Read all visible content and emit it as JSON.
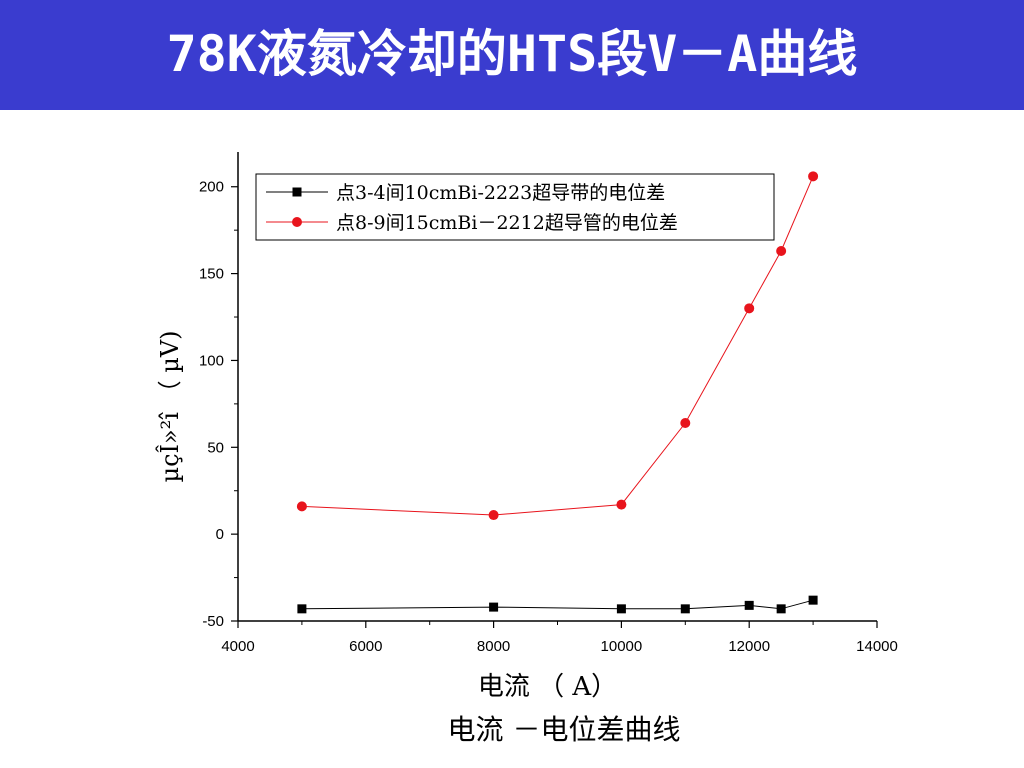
{
  "header": {
    "title": "78K液氮冷却的HTS段V－A曲线"
  },
  "caption": "电流 －电位差曲线",
  "colors": {
    "header_bg": "#3a3ccf",
    "series1": "#000000",
    "series2": "#e8141c"
  },
  "chart_data": {
    "type": "line",
    "title": "",
    "xlabel": "电流 （ A）",
    "ylabel": "µçÎ»²î （ µV)",
    "xlim": [
      4000,
      14000
    ],
    "ylim": [
      -50,
      220
    ],
    "xticks": [
      4000,
      6000,
      8000,
      10000,
      12000,
      14000
    ],
    "yticks": [
      -50,
      0,
      50,
      100,
      150,
      200
    ],
    "legend_position": "top-right",
    "grid": false,
    "series": [
      {
        "name": "点3-4间10cmBi-2223超导带的电位差",
        "marker": "square",
        "x": [
          5000,
          8000,
          10000,
          11000,
          12000,
          12500,
          13000
        ],
        "y": [
          -43,
          -42,
          -43,
          -43,
          -41,
          -43,
          -38
        ]
      },
      {
        "name": "点8-9间15cmBi－2212超导管的电位差",
        "marker": "circle",
        "x": [
          5000,
          8000,
          10000,
          11000,
          12000,
          12500,
          13000
        ],
        "y": [
          16,
          11,
          17,
          64,
          130,
          163,
          206
        ]
      }
    ]
  }
}
